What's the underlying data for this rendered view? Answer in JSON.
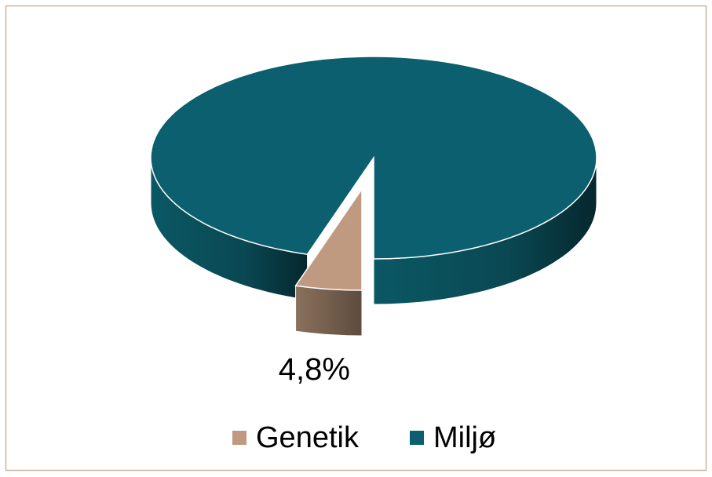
{
  "chart_data": {
    "type": "pie",
    "categories": [
      "Genetik",
      "Miljø"
    ],
    "values": [
      4.8,
      95.2
    ],
    "value_labels": [
      "4,8%",
      null
    ],
    "colors": [
      "#bf9a80",
      "#0b5f6e"
    ],
    "legend": "bottom"
  }
}
